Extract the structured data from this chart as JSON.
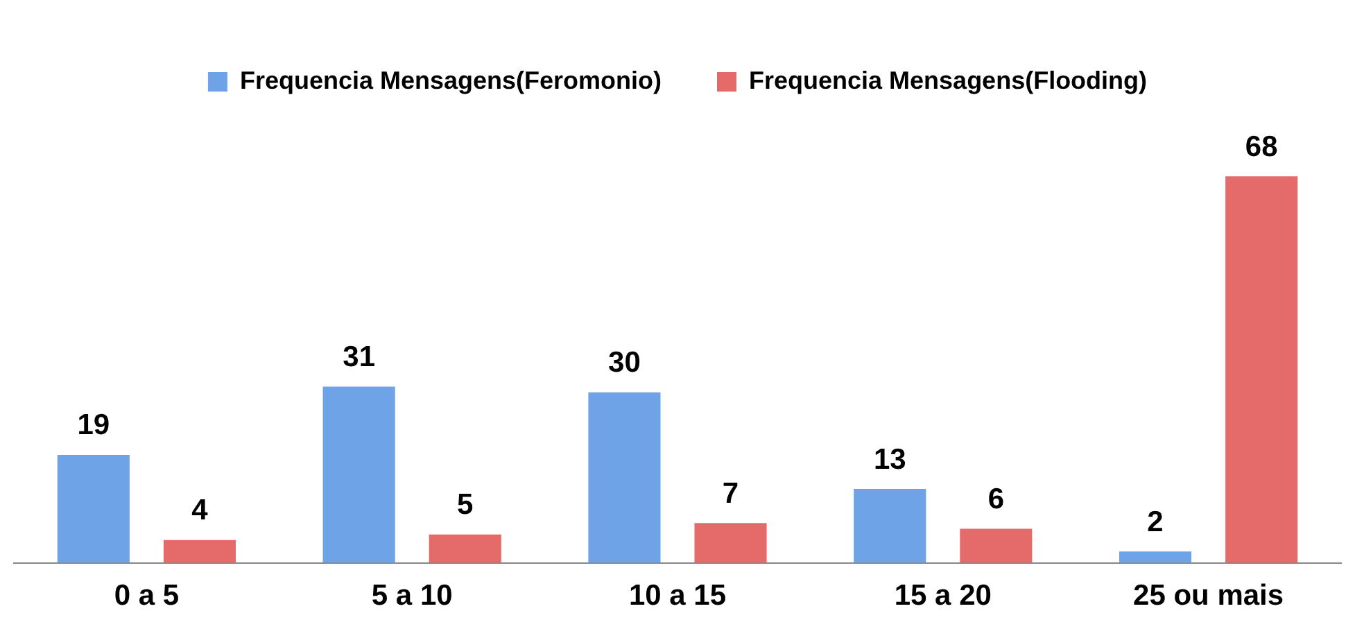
{
  "chart_data": {
    "type": "bar",
    "categories": [
      "0 a 5",
      "5 a 10",
      "10 a 15",
      "15 a 20",
      "25 ou mais"
    ],
    "series": [
      {
        "name": "Frequencia Mensagens(Feromonio)",
        "color": "#6fa3e8",
        "values": [
          19,
          31,
          30,
          13,
          2
        ]
      },
      {
        "name": "Frequencia Mensagens(Flooding)",
        "color": "#e56b6b",
        "values": [
          4,
          5,
          7,
          6,
          68
        ]
      }
    ],
    "data_labels": true,
    "legend": "top",
    "grid": false
  }
}
